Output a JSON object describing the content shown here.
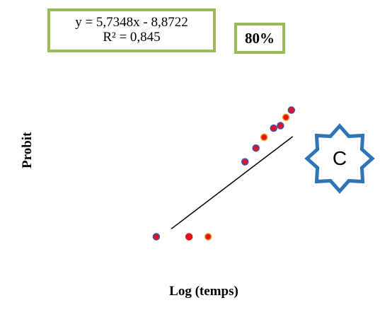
{
  "equation": {
    "line1": "y = 5,7348x - 8,8722",
    "line2": "R² = 0,845"
  },
  "percentage": "80%",
  "badge": {
    "letter": "C",
    "icon": "eight-point-star-icon",
    "color": "#2e75b6"
  },
  "colors": {
    "box_border": "#9bbb59",
    "point_fill": "#e0141e",
    "point_edge": "#3f51b5",
    "point_edge_alt": "#f39c12"
  },
  "chart_data": {
    "type": "scatter",
    "xlabel": "Log (temps)",
    "ylabel": "Probit",
    "xlim": [
      1.45,
      2.15
    ],
    "ylim": [
      -0.5,
      4.0
    ],
    "grid": false,
    "trendline": {
      "slope": 5.7348,
      "intercept": -8.8722
    },
    "points": [
      {
        "x": 1.53,
        "y": 0.0,
        "edge": "blue"
      },
      {
        "x": 1.65,
        "y": 0.0,
        "edge": "red"
      },
      {
        "x": 1.72,
        "y": 0.0,
        "edge": "orange"
      },
      {
        "x": 1.855,
        "y": 2.07,
        "edge": "blue"
      },
      {
        "x": 1.895,
        "y": 2.45,
        "edge": "blue"
      },
      {
        "x": 1.925,
        "y": 2.75,
        "edge": "orange"
      },
      {
        "x": 1.96,
        "y": 3.0,
        "edge": "blue"
      },
      {
        "x": 1.985,
        "y": 3.07,
        "edge": "blue"
      },
      {
        "x": 2.005,
        "y": 3.3,
        "edge": "orange"
      },
      {
        "x": 2.025,
        "y": 3.5,
        "edge": "blue"
      }
    ]
  }
}
